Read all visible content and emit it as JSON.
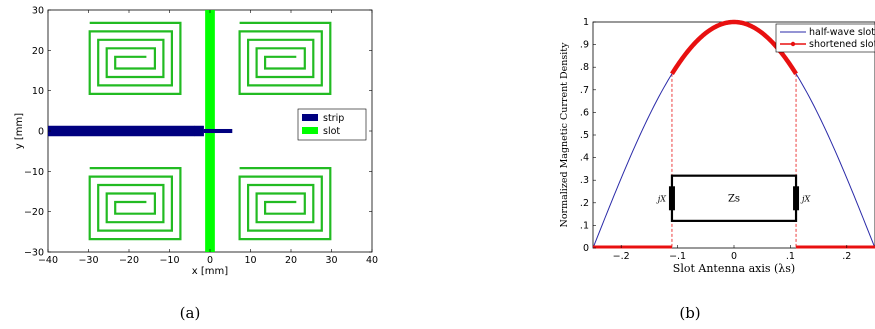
{
  "chart_data": [
    {
      "type": "diagram",
      "panel_label": "(a)",
      "xlabel": "x [mm]",
      "ylabel": "y [mm]",
      "xlim": [
        -40,
        40
      ],
      "ylim": [
        -30,
        30
      ],
      "xticks": [
        -40,
        -30,
        -20,
        -10,
        0,
        10,
        20,
        30,
        40
      ],
      "yticks": [
        -30,
        -20,
        -10,
        0,
        10,
        20,
        30
      ],
      "legend_position": "right",
      "legend": [
        {
          "label": "strip",
          "color": "#00007f"
        },
        {
          "label": "slot",
          "color": "#00ff00"
        }
      ],
      "slot": {
        "x": [
          -1.2,
          1.2
        ],
        "y": [
          -30,
          30
        ],
        "color": "#00ff00"
      },
      "strip": {
        "x": [
          -40,
          -1.5
        ],
        "y": [
          -1.3,
          1.3
        ],
        "stub_x": [
          -1.5,
          5.5
        ],
        "color": "#00007f"
      },
      "spirals": {
        "color": "#22bb22",
        "centers": [
          [
            -18.5,
            18
          ],
          [
            18.5,
            18
          ],
          [
            -18.5,
            -18
          ],
          [
            18.5,
            -18
          ]
        ],
        "half_width": 11.2,
        "half_height": 8.8,
        "pitch": 2.1,
        "turns": 4
      }
    },
    {
      "type": "line",
      "panel_label": "(b)",
      "xlabel": "Slot Antenna axis (λs)",
      "ylabel": "Normalized Magnetic Current Density",
      "xlim": [
        -0.25,
        0.25
      ],
      "ylim": [
        0,
        1
      ],
      "xticks": [
        -0.2,
        -0.1,
        0,
        0.1,
        0.2
      ],
      "yticks": [
        0,
        0.1,
        0.2,
        0.3,
        0.4,
        0.5,
        0.6,
        0.7,
        0.8,
        0.9,
        1
      ],
      "legend_position": "top-right",
      "series": [
        {
          "name": "half-wave slot",
          "color": "#2a2aa8",
          "function": "cos(2*pi*x)",
          "x_range": [
            -0.25,
            0.25
          ]
        },
        {
          "name": "shortened slot",
          "color": "#e81010",
          "function": "cos(2*pi*x)",
          "x_range": [
            -0.11,
            0.11
          ],
          "zero_outside": true
        }
      ],
      "markers_x": [
        -0.11,
        0.11
      ],
      "circuit": {
        "label": "Zs",
        "left_label": "jX",
        "right_label": "jX",
        "x_range": [
          -0.11,
          0.11
        ],
        "y_range": [
          0.12,
          0.32
        ]
      }
    }
  ]
}
